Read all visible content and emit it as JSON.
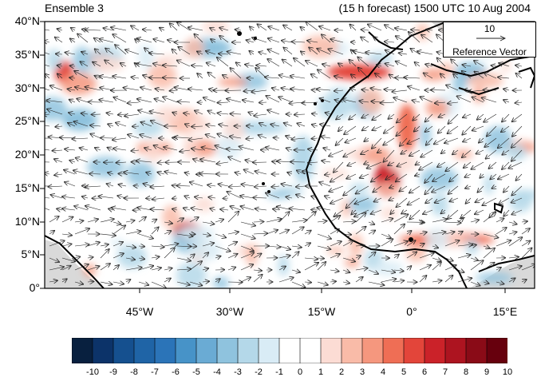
{
  "title_left": "Ensemble 3",
  "title_right": "(15 h forecast) 1500 UTC 10 Aug 2004",
  "map": {
    "lon_range": [
      -58,
      20
    ],
    "lat_range": [
      0,
      40
    ],
    "y_ticks": [
      "40°N",
      "35°N",
      "30°N",
      "25°N",
      "20°N",
      "15°N",
      "10°N",
      "5°N",
      "0°"
    ],
    "x_ticks": [
      "45°W",
      "30°W",
      "15°W",
      "0°",
      "15°E"
    ],
    "colors": {
      "land_outline": "#000000",
      "frame": "#000000",
      "missing": "#d9d9d9"
    }
  },
  "reference_vector": {
    "magnitude": "10",
    "label": "Reference Vector"
  },
  "colorbar": {
    "labels": [
      "-10",
      "-9",
      "-8",
      "-7",
      "-6",
      "-5",
      "-4",
      "-3",
      "-2",
      "-1",
      "0",
      "1",
      "2",
      "3",
      "4",
      "5",
      "6",
      "7",
      "8",
      "9",
      "10"
    ],
    "colors": [
      "#08203f",
      "#0c3369",
      "#15508f",
      "#1f64a6",
      "#2b74b8",
      "#4793c8",
      "#6aabd4",
      "#8fc3de",
      "#b4d8e9",
      "#d9ecf6",
      "#ffffff",
      "#ffffff",
      "#fcdcd4",
      "#f9bba8",
      "#f5977e",
      "#ef6e55",
      "#e3453a",
      "#cb2229",
      "#ad1420",
      "#8a0b17",
      "#67000d"
    ]
  }
}
